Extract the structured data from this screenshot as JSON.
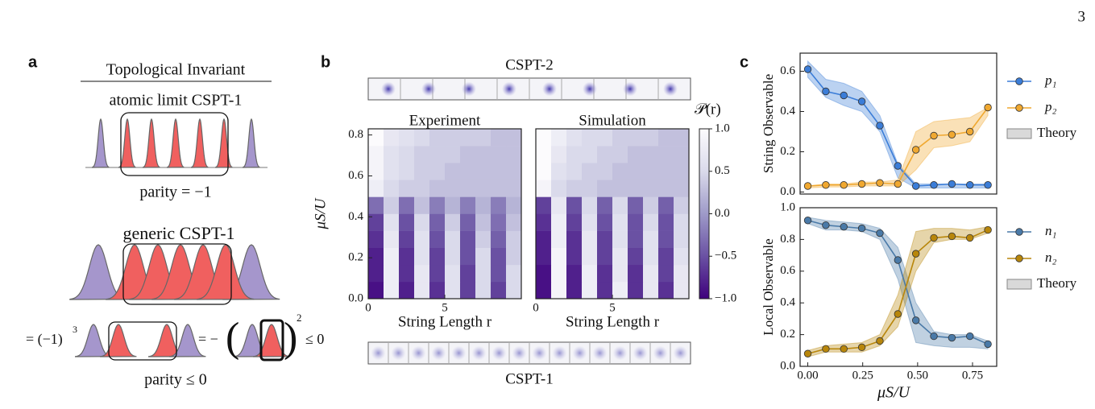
{
  "page_number": "3",
  "panel_a": {
    "label": "a",
    "heading": "Topological Invariant",
    "atomic_title": "atomic limit CSPT-1",
    "atomic_parity": "parity = −1",
    "generic_title": "generic CSPT-1",
    "equation": {
      "lhs": "= (−1)",
      "exponent": "3",
      "middle": "= −",
      "open": "(",
      "close": ")",
      "power": "2",
      "rhs": "≤ 0"
    },
    "generic_parity": "parity ≤ 0"
  },
  "panel_b": {
    "label": "b",
    "top_image_label": "CSPT-2",
    "bottom_image_label": "CSPT-1",
    "colorbar": {
      "label": "𝒫(r)",
      "clim": [
        -1,
        1
      ],
      "ticks": [
        {
          "value": 1,
          "label": "1.0"
        },
        0.5,
        {
          "value": 0,
          "label": "0.0"
        },
        {
          "value": -0.5,
          "label": "−0.5"
        },
        {
          "value": -1,
          "label": "−1.0"
        }
      ],
      "colormap": [
        "#3f007d",
        "#6a51a3",
        "#9e9ac8",
        "#dadaeb",
        "#fcfbfd"
      ]
    }
  },
  "panel_c": {
    "label": "c"
  },
  "chart_data": [
    {
      "type": "heatmap",
      "title": "Experiment",
      "xlabel": "String Length r",
      "ylabel": "μS/U",
      "x": [
        0,
        1,
        2,
        3,
        4,
        5,
        6,
        7,
        8,
        9
      ],
      "y": [
        0,
        0.083,
        0.166,
        0.249,
        0.332,
        0.415,
        0.498,
        0.581,
        0.664,
        0.747
      ],
      "xlim": [
        0,
        10
      ],
      "ylim": [
        0,
        0.83
      ],
      "xticks": [
        0,
        5
      ],
      "yticks": [
        {
          "value": 0,
          "label": "0.0"
        },
        0.2,
        0.4,
        0.6,
        0.8
      ],
      "z": [
        [
          -0.9,
          0.8,
          -0.8,
          0.7,
          -0.7,
          0.6,
          -0.6,
          0.5,
          -0.6,
          0.5
        ],
        [
          -0.8,
          0.8,
          -0.7,
          0.7,
          -0.6,
          0.6,
          -0.6,
          0.5,
          -0.5,
          0.5
        ],
        [
          -0.8,
          0.8,
          -0.7,
          0.6,
          -0.6,
          0.5,
          -0.5,
          0.5,
          -0.5,
          0.4
        ],
        [
          -0.7,
          0.7,
          -0.6,
          0.6,
          -0.5,
          0.5,
          -0.5,
          0.4,
          -0.4,
          0.4
        ],
        [
          -0.6,
          0.6,
          -0.5,
          0.5,
          -0.4,
          0.4,
          -0.4,
          0.3,
          -0.3,
          0.3
        ],
        [
          -0.3,
          0.4,
          -0.3,
          0.3,
          -0.2,
          0.2,
          -0.2,
          0.2,
          -0.2,
          0.2
        ],
        [
          0.8,
          0.5,
          0.4,
          0.4,
          0.3,
          0.3,
          0.3,
          0.3,
          0.3,
          0.3
        ],
        [
          0.9,
          0.6,
          0.5,
          0.4,
          0.4,
          0.3,
          0.3,
          0.3,
          0.3,
          0.3
        ],
        [
          0.9,
          0.6,
          0.5,
          0.4,
          0.4,
          0.4,
          0.3,
          0.3,
          0.3,
          0.3
        ],
        [
          1.0,
          0.7,
          0.6,
          0.5,
          0.4,
          0.4,
          0.4,
          0.4,
          0.3,
          0.3
        ]
      ]
    },
    {
      "type": "heatmap",
      "title": "Simulation",
      "xlabel": "String Length r",
      "x": [
        0,
        1,
        2,
        3,
        4,
        5,
        6,
        7,
        8,
        9
      ],
      "y": [
        0,
        0.083,
        0.166,
        0.249,
        0.332,
        0.415,
        0.498,
        0.581,
        0.664,
        0.747
      ],
      "xlim": [
        0,
        10
      ],
      "ylim": [
        0,
        0.83
      ],
      "xticks": [
        0,
        5
      ],
      "z": [
        [
          -0.9,
          0.9,
          -0.8,
          0.8,
          -0.7,
          0.8,
          -0.7,
          0.7,
          -0.7,
          0.7
        ],
        [
          -0.9,
          0.9,
          -0.8,
          0.8,
          -0.7,
          0.7,
          -0.7,
          0.7,
          -0.6,
          0.7
        ],
        [
          -0.8,
          0.9,
          -0.7,
          0.7,
          -0.6,
          0.7,
          -0.6,
          0.6,
          -0.6,
          0.6
        ],
        [
          -0.8,
          0.8,
          -0.7,
          0.7,
          -0.6,
          0.6,
          -0.5,
          0.6,
          -0.5,
          0.5
        ],
        [
          -0.7,
          0.8,
          -0.6,
          0.6,
          -0.5,
          0.6,
          -0.5,
          0.5,
          -0.5,
          0.5
        ],
        [
          -0.6,
          0.7,
          -0.5,
          0.5,
          -0.4,
          0.5,
          -0.4,
          0.4,
          -0.4,
          0.4
        ],
        [
          0.9,
          0.5,
          0.4,
          0.4,
          0.3,
          0.3,
          0.3,
          0.3,
          0.3,
          0.3
        ],
        [
          1.0,
          0.6,
          0.5,
          0.4,
          0.4,
          0.3,
          0.3,
          0.3,
          0.3,
          0.3
        ],
        [
          1.0,
          0.7,
          0.5,
          0.5,
          0.4,
          0.4,
          0.3,
          0.3,
          0.3,
          0.3
        ],
        [
          1.0,
          0.8,
          0.6,
          0.5,
          0.5,
          0.4,
          0.4,
          0.4,
          0.3,
          0.3
        ]
      ]
    },
    {
      "type": "line",
      "ylabel": "String Observable",
      "x": [
        0,
        0.082,
        0.164,
        0.246,
        0.328,
        0.41,
        0.492,
        0.574,
        0.656,
        0.738,
        0.82
      ],
      "xlim": [
        -0.035,
        0.86
      ],
      "ylim": [
        -0.01,
        0.69
      ],
      "yticks": [
        {
          "value": 0,
          "label": "0.0"
        },
        0.2,
        0.4,
        0.6
      ],
      "band_label": "Theory",
      "band_legend_color": "#d9d9d9",
      "series": [
        {
          "name": "p₁",
          "color": "#3b7dd8",
          "values": [
            0.61,
            0.5,
            0.48,
            0.45,
            0.33,
            0.13,
            0.03,
            0.035,
            0.04,
            0.035,
            0.035
          ],
          "band": {
            "lower": [
              0.57,
              0.47,
              0.43,
              0.4,
              0.3,
              0.07,
              0.02,
              0.02,
              0.02,
              0.02,
              0.02
            ],
            "upper": [
              0.65,
              0.56,
              0.54,
              0.5,
              0.38,
              0.14,
              0.04,
              0.04,
              0.04,
              0.04,
              0.04
            ]
          }
        },
        {
          "name": "p₂",
          "color": "#f0a830",
          "values": [
            0.03,
            0.035,
            0.035,
            0.04,
            0.045,
            0.04,
            0.21,
            0.28,
            0.285,
            0.3,
            0.42
          ],
          "band": {
            "lower": [
              0.02,
              0.025,
              0.025,
              0.03,
              0.03,
              0.03,
              0.11,
              0.22,
              0.23,
              0.25,
              0.38
            ],
            "upper": [
              0.03,
              0.04,
              0.04,
              0.05,
              0.05,
              0.06,
              0.3,
              0.35,
              0.36,
              0.37,
              0.42
            ]
          }
        }
      ]
    },
    {
      "type": "line",
      "ylabel": "Local Observable",
      "xlabel": "μS/U",
      "x": [
        0,
        0.082,
        0.164,
        0.246,
        0.328,
        0.41,
        0.492,
        0.574,
        0.656,
        0.738,
        0.82
      ],
      "xlim": [
        -0.035,
        0.86
      ],
      "ylim": [
        0,
        1
      ],
      "xticks": [
        {
          "value": 0,
          "label": "0.00"
        },
        0.25,
        {
          "value": 0.5,
          "label": "0.50"
        },
        0.75
      ],
      "yticks": [
        {
          "value": 0,
          "label": "0.0"
        },
        0.2,
        0.4,
        0.6,
        0.8,
        {
          "value": 1,
          "label": "1.0"
        }
      ],
      "band_label": "Theory",
      "band_legend_color": "#d9d9d9",
      "series": [
        {
          "name": "n₁",
          "color": "#4a7aa8",
          "values": [
            0.92,
            0.89,
            0.88,
            0.87,
            0.84,
            0.67,
            0.29,
            0.19,
            0.18,
            0.19,
            0.14
          ],
          "band": {
            "lower": [
              0.9,
              0.86,
              0.86,
              0.85,
              0.8,
              0.55,
              0.15,
              0.13,
              0.12,
              0.12,
              0.11
            ],
            "upper": [
              0.94,
              0.92,
              0.91,
              0.9,
              0.87,
              0.75,
              0.4,
              0.22,
              0.2,
              0.2,
              0.16
            ]
          }
        },
        {
          "name": "n₂",
          "color": "#b8860b",
          "values": [
            0.08,
            0.11,
            0.11,
            0.12,
            0.16,
            0.33,
            0.71,
            0.81,
            0.82,
            0.81,
            0.86
          ],
          "band": {
            "lower": [
              0.06,
              0.09,
              0.09,
              0.09,
              0.13,
              0.25,
              0.6,
              0.78,
              0.8,
              0.8,
              0.84
            ],
            "upper": [
              0.1,
              0.13,
              0.14,
              0.15,
              0.2,
              0.45,
              0.85,
              0.87,
              0.87,
              0.86,
              0.88
            ]
          }
        }
      ]
    }
  ]
}
